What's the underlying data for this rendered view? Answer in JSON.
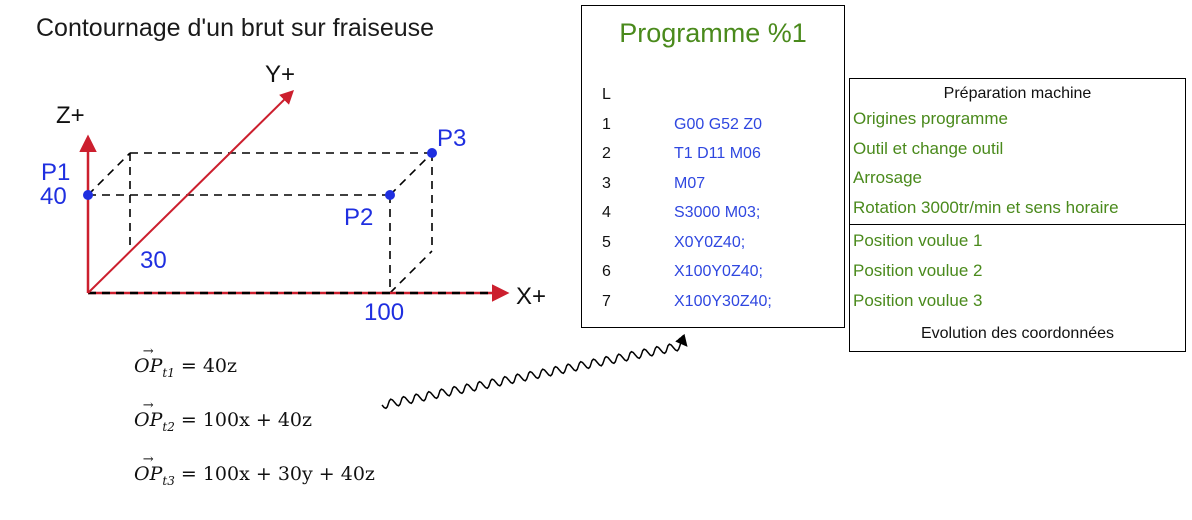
{
  "title": "Contournage d'un brut sur fraiseuse",
  "axes": {
    "x": "X+",
    "y": "Y+",
    "z": "Z+"
  },
  "dimensions": {
    "x": "100",
    "y": "30",
    "z": "40"
  },
  "points": [
    "P1",
    "P2",
    "P3"
  ],
  "colors": {
    "axis_red": "#cc1f2e",
    "point_blue": "#1f2fe0",
    "green": "#4a8a1c",
    "code_blue": "#2f47e0"
  },
  "program": {
    "title": "Programme %1",
    "lines": [
      {
        "num": "L",
        "code": ""
      },
      {
        "num": "1",
        "code": "G00 G52 Z0"
      },
      {
        "num": "2",
        "code": "T1 D11 M06"
      },
      {
        "num": "3",
        "code": "M07"
      },
      {
        "num": "4",
        "code": "S3000 M03;"
      },
      {
        "num": "5",
        "code": "X0Y0Z40;"
      },
      {
        "num": "6",
        "code": "X100Y0Z40;"
      },
      {
        "num": "7",
        "code": "X100Y30Z40;"
      }
    ]
  },
  "preparation": {
    "title": "Préparation machine",
    "items": [
      "Origines programme",
      "Outil et change outil",
      "Arrosage",
      "Rotation 3000tr/min et sens horaire"
    ],
    "positions": [
      "Position voulue 1",
      "Position voulue 2",
      "Position voulue 3"
    ],
    "footer": "Evolution des coordonnées"
  },
  "equations": [
    {
      "vector": "OP",
      "sub": "t1",
      "rhs": "40z"
    },
    {
      "vector": "OP",
      "sub": "t2",
      "rhs": "100x + 40z"
    },
    {
      "vector": "OP",
      "sub": "t3",
      "rhs": "100x + 30y + 40z"
    }
  ]
}
